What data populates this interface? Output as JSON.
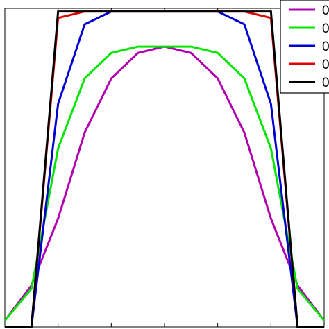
{
  "chart_data": {
    "type": "line",
    "title": "",
    "xlabel": "",
    "ylabel": "",
    "xlim": [
      0,
      12
    ],
    "ylim": [
      0,
      1.0
    ],
    "x": [
      0,
      1,
      2,
      3,
      4,
      5,
      6,
      7,
      8,
      9,
      10,
      11,
      12
    ],
    "grid": false,
    "legend_position": "top-right",
    "series": [
      {
        "name": "0",
        "color": "#b000b0",
        "values": [
          0.02,
          0.13,
          0.34,
          0.61,
          0.78,
          0.86,
          0.88,
          0.86,
          0.78,
          0.61,
          0.34,
          0.13,
          0.02
        ]
      },
      {
        "name": "0",
        "color": "#00e600",
        "values": [
          0.02,
          0.12,
          0.56,
          0.78,
          0.86,
          0.88,
          0.88,
          0.88,
          0.86,
          0.78,
          0.56,
          0.12,
          0.02
        ]
      },
      {
        "name": "0",
        "color": "#0000d0",
        "values": [
          0.0,
          0.0,
          0.7,
          0.95,
          0.99,
          0.99,
          0.99,
          0.99,
          0.99,
          0.95,
          0.7,
          0.0,
          0.0
        ]
      },
      {
        "name": "0",
        "color": "#e00000",
        "values": [
          0.0,
          0.0,
          0.97,
          0.99,
          0.99,
          0.99,
          0.99,
          0.99,
          0.99,
          0.99,
          0.97,
          0.0,
          0.0
        ]
      },
      {
        "name": "0",
        "color": "#000000",
        "values": [
          0.0,
          0.0,
          0.99,
          0.99,
          0.99,
          0.99,
          0.99,
          0.99,
          0.99,
          0.99,
          0.99,
          0.0,
          0.0
        ]
      }
    ]
  }
}
